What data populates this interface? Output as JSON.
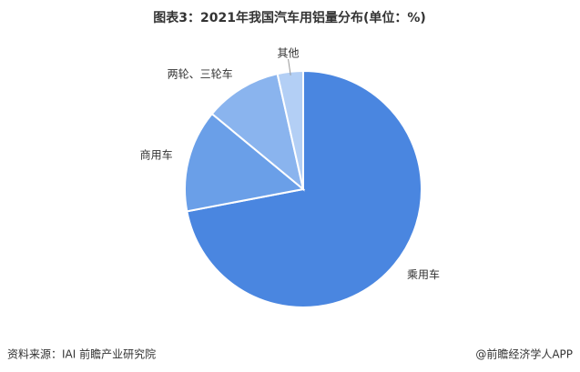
{
  "chart_data": {
    "type": "pie",
    "title": "图表3：2021年我国汽车用铝量分布(单位：%)",
    "categories": [
      "乘用车",
      "商用车",
      "两轮、三轮车",
      "其他"
    ],
    "values": [
      72,
      14,
      10.5,
      3.5
    ],
    "colors": [
      "#4a86e0",
      "#6a9fe8",
      "#8ab4ee",
      "#b3cff5"
    ]
  },
  "footer": {
    "source": "资料来源：IAI 前瞻产业研究院",
    "credit": "@前瞻经济学人APP"
  }
}
